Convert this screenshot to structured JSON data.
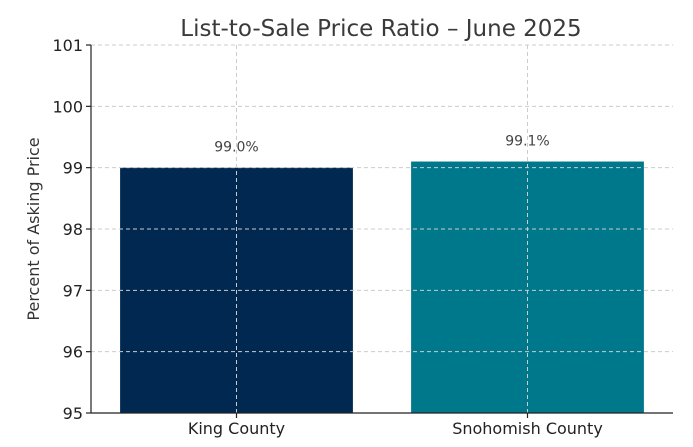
{
  "chart_data": {
    "type": "bar",
    "title": "List-to-Sale Price Ratio – June 2025",
    "xlabel": "",
    "ylabel": "Percent of Asking Price",
    "categories": [
      "King County",
      "Snohomish County"
    ],
    "values": [
      99.0,
      99.1
    ],
    "data_labels": [
      "99.0%",
      "99.1%"
    ],
    "colors": [
      "#002850",
      "#00788C"
    ],
    "ylim": [
      95,
      101
    ],
    "yticks": [
      95,
      96,
      97,
      98,
      99,
      100,
      101
    ],
    "grid": true,
    "legend": "none"
  }
}
